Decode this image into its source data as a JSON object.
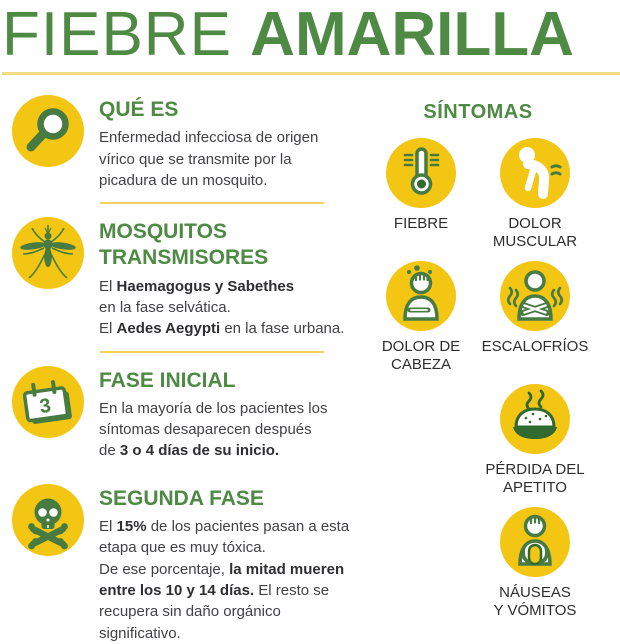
{
  "title": {
    "word1": "FIEBRE",
    "word2": "AMARILLA"
  },
  "colors": {
    "green_heading": "#4E8A44",
    "green_icon": "#477B41",
    "green_deep": "#316A2E",
    "yellow_circle": "#F3C614",
    "title_rule": "#F2DC86",
    "section_divider": "#EFD25F",
    "body_text": "#414146",
    "label_text": "#2E2E2E"
  },
  "sections": [
    {
      "icon": "magnifier-icon",
      "heading": "QUÉ ES",
      "body": [
        {
          "t": "Enfermedad infecciosa de origen\nvírico que se transmite por la\npicadura de un mosquito.",
          "b": false
        }
      ]
    },
    {
      "icon": "mosquito-icon",
      "heading": "MOSQUITOS\nTRANSMISORES",
      "body": [
        {
          "t": "El ",
          "b": false
        },
        {
          "t": "Haemagogus y Sabethes",
          "b": true
        },
        {
          "t": "\nen la fase selvática.\nEl ",
          "b": false
        },
        {
          "t": "Aedes Aegypti",
          "b": true
        },
        {
          "t": " en la fase urbana.",
          "b": false
        }
      ]
    },
    {
      "icon": "calendar-3-icon",
      "heading": "FASE INICIAL",
      "calendar_day": "3",
      "body": [
        {
          "t": "En la mayoría de los pacientes los\nsíntomas desaparecen después\nde ",
          "b": false
        },
        {
          "t": "3 o 4 días de su inicio.",
          "b": true
        }
      ]
    },
    {
      "icon": "skull-crossbones-icon",
      "heading": "SEGUNDA FASE",
      "body": [
        {
          "t": "El ",
          "b": false
        },
        {
          "t": "15%",
          "b": true
        },
        {
          "t": " de los pacientes pasan a esta\netapa que es muy tóxica.\nDe ese porcentaje, ",
          "b": false
        },
        {
          "t": "la mitad mueren\nentre los 10 y 14 días.",
          "b": true
        },
        {
          "t": " El resto se\nrecupera sin daño orgánico\nsignificativo.",
          "b": false
        }
      ]
    }
  ],
  "symptoms": {
    "heading": "SÍNTOMAS",
    "items": [
      {
        "icon": "thermometer-icon",
        "label": "FIEBRE"
      },
      {
        "icon": "muscle-pain-icon",
        "label": "DOLOR\nMUSCULAR"
      },
      {
        "icon": "headache-icon",
        "label": "DOLOR DE\nCABEZA"
      },
      {
        "icon": "chills-icon",
        "label": "ESCALOFRÍOS"
      },
      {
        "icon": "appetite-loss-icon",
        "label": "PÉRDIDA DEL\nAPETITO"
      },
      {
        "icon": "nausea-icon",
        "label": "NÁUSEAS\nY VÓMITOS"
      }
    ]
  }
}
